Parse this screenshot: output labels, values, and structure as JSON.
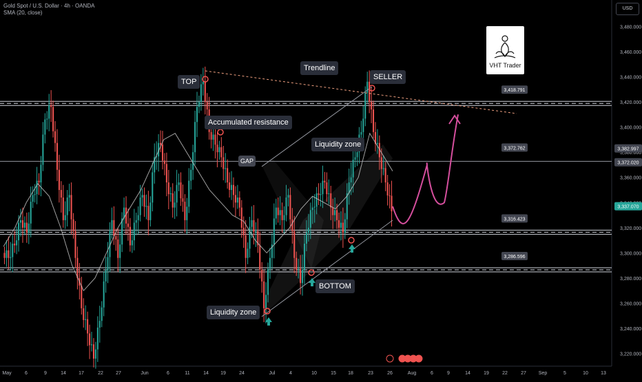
{
  "header": {
    "symbol_line": "Gold Spot / U.S. Dollar · 4h · OANDA",
    "indicator_line": "SMA (20, close)",
    "currency": "USD"
  },
  "logo": {
    "text": "VHT Trader"
  },
  "annotations": {
    "top": "TOP",
    "trendline": "Trendline",
    "seller": "SELLER",
    "accumulated_resistance": "Accumulated resistance",
    "liquidity_zone_upper": "Liquidity zone",
    "gap": "GAP",
    "bottom": "BOTTOM",
    "liquidity_zone_lower": "Liquidity zone"
  },
  "chart_data": {
    "type": "candlestick",
    "timeframe": "4h",
    "ylim": [
      3210,
      3490
    ],
    "y_ticks": [
      "3,480.000",
      "3,460.000",
      "3,440.000",
      "3,420.000",
      "3,400.000",
      "3,380.000",
      "3,360.000",
      "3,340.000",
      "3,320.000",
      "3,300.000",
      "3,280.000",
      "3,260.000",
      "3,240.000",
      "3,220.000"
    ],
    "x_ticks": [
      "May",
      "6",
      "9",
      "14",
      "17",
      "22",
      "27",
      "Jun",
      "6",
      "11",
      "14",
      "19",
      "24",
      "Jul",
      "4",
      "10",
      "15",
      "18",
      "23",
      "26",
      "Aug",
      "6",
      "9",
      "14",
      "19",
      "22",
      "27",
      "Sep",
      "5",
      "10",
      "13"
    ],
    "horizontal_levels": [
      {
        "label": "3,418.791",
        "value": 3418.791,
        "style": "double-dashed"
      },
      {
        "label": "3,372.762",
        "value": 3372.762,
        "style": "solid"
      },
      {
        "label": "3,316.423",
        "value": 3316.423,
        "style": "double-dashed"
      },
      {
        "label": "3,286.596",
        "value": 3286.596,
        "style": "double-dashed"
      }
    ],
    "price_labels": [
      {
        "text": "3,382.997",
        "value": 3382.997,
        "color": "#434651"
      },
      {
        "text": "3,372.020",
        "value": 3372.02,
        "color": "#434651"
      },
      {
        "text": "3,337.070",
        "value": 3337.07,
        "color": "#26a69a"
      }
    ],
    "close_path": [
      3300,
      3310,
      3330,
      3320,
      3350,
      3360,
      3410,
      3420,
      3370,
      3330,
      3350,
      3300,
      3260,
      3240,
      3220,
      3250,
      3290,
      3330,
      3300,
      3340,
      3310,
      3330,
      3350,
      3330,
      3380,
      3390,
      3360,
      3340,
      3360,
      3330,
      3370,
      3420,
      3440,
      3400,
      3390,
      3380,
      3360,
      3350,
      3340,
      3300,
      3330,
      3310,
      3260,
      3300,
      3340,
      3330,
      3350,
      3300,
      3280,
      3320,
      3340,
      3350,
      3360,
      3340,
      3330,
      3320,
      3360,
      3380,
      3400,
      3440,
      3400,
      3380,
      3360,
      3337
    ],
    "sma_path": [
      3305,
      3320,
      3340,
      3355,
      3345,
      3320,
      3290,
      3270,
      3280,
      3300,
      3320,
      3335,
      3350,
      3370,
      3390,
      3395,
      3380,
      3365,
      3350,
      3340,
      3330,
      3325,
      3310,
      3300,
      3310,
      3320,
      3335,
      3345,
      3340,
      3335,
      3345,
      3360,
      3395,
      3380,
      3365
    ],
    "projection": [
      3337,
      3320,
      3335,
      3370,
      3350,
      3330,
      3345,
      3390,
      3418
    ]
  }
}
